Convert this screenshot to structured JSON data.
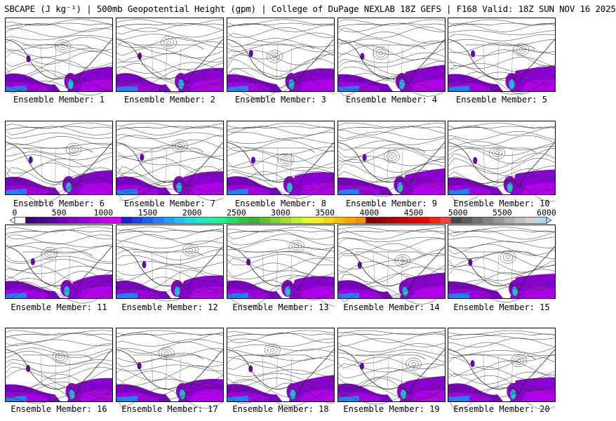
{
  "title": "SBCAPE (J kg⁻¹) | 500mb Geopotential Height (gpm) | College of DuPage NEXLAB 18Z GEFS | F168 Valid: 18Z SUN NOV 16 2025",
  "caption_prefix": "Ensemble Member: ",
  "members": [
    {
      "label": "Ensemble Member: 1"
    },
    {
      "label": "Ensemble Member: 2"
    },
    {
      "label": "Ensemble Member: 3"
    },
    {
      "label": "Ensemble Member: 4"
    },
    {
      "label": "Ensemble Member: 5"
    },
    {
      "label": "Ensemble Member: 6"
    },
    {
      "label": "Ensemble Member: 7"
    },
    {
      "label": "Ensemble Member: 8"
    },
    {
      "label": "Ensemble Member: 9"
    },
    {
      "label": "Ensemble Member: 10"
    },
    {
      "label": "Ensemble Member: 11"
    },
    {
      "label": "Ensemble Member: 12"
    },
    {
      "label": "Ensemble Member: 13"
    },
    {
      "label": "Ensemble Member: 14"
    },
    {
      "label": "Ensemble Member: 15"
    },
    {
      "label": "Ensemble Member: 16"
    },
    {
      "label": "Ensemble Member: 17"
    },
    {
      "label": "Ensemble Member: 18"
    },
    {
      "label": "Ensemble Member: 19"
    },
    {
      "label": "Ensemble Member: 20"
    }
  ],
  "colorbar": {
    "tick_labels": [
      "0",
      "500",
      "1000",
      "1500",
      "2000",
      "2500",
      "3000",
      "3500",
      "4000",
      "4500",
      "5000",
      "5500",
      "6000"
    ],
    "min": 0,
    "max": 6000,
    "colors": [
      "#ffffff",
      "#3c0070",
      "#4a0088",
      "#5a00a0",
      "#6c00b8",
      "#8000c8",
      "#9400d8",
      "#aa00e0",
      "#c000e8",
      "#d400f0",
      "#1a20d0",
      "#1e40e0",
      "#2060f0",
      "#2080f8",
      "#20a0f8",
      "#20c0f0",
      "#20d8e0",
      "#20e8c8",
      "#20f0a8",
      "#20f088",
      "#20e060",
      "#30c840",
      "#40b030",
      "#60c030",
      "#80d030",
      "#a0e030",
      "#c0f030",
      "#e0f830",
      "#f8f020",
      "#f8d810",
      "#f8c000",
      "#f8a800",
      "#f89000",
      "#800000",
      "#980000",
      "#b00000",
      "#c80000",
      "#e00000",
      "#f00000",
      "#f82000",
      "#f84040",
      "#484848",
      "#5c5c5c",
      "#707070",
      "#848484",
      "#989898",
      "#acacac",
      "#c0c0c0",
      "#d0d0d0",
      "#b0d8f0"
    ]
  }
}
